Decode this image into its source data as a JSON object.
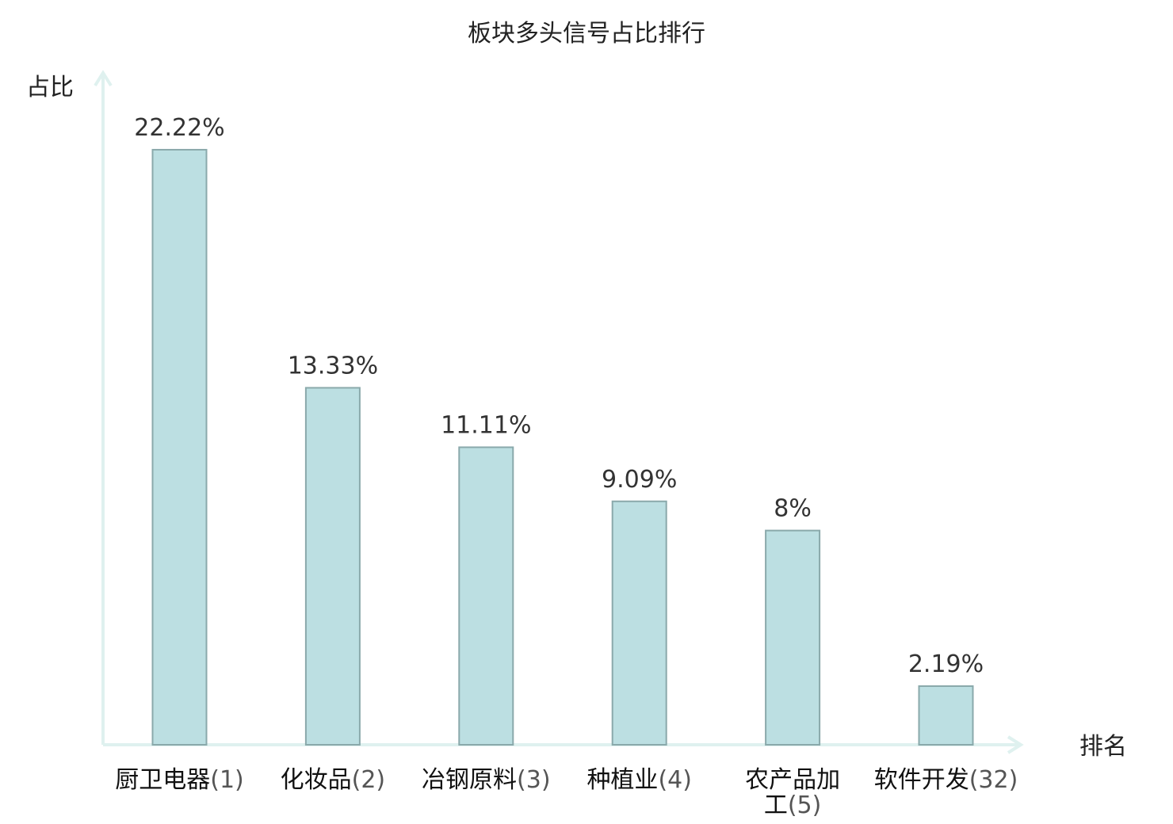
{
  "chart_data": {
    "type": "bar",
    "title": "板块多头信号占比排行",
    "ylabel": "占比",
    "xlabel": "排名",
    "grid": false,
    "ylim": [
      0,
      25
    ],
    "categories": [
      {
        "name": "厨卫电器",
        "rank": "(1)",
        "highlight": false
      },
      {
        "name": "化妆品",
        "rank": "(2)",
        "highlight": false
      },
      {
        "name": "冶钢原料",
        "rank": "(3)",
        "highlight": false
      },
      {
        "name": "种植业",
        "rank": "(4)",
        "highlight": false
      },
      {
        "name": "农产品加工",
        "rank": "(5)",
        "highlight": false
      },
      {
        "name": "软件开发",
        "rank": "(32)",
        "highlight": true
      }
    ],
    "values": [
      22.22,
      13.33,
      11.11,
      9.09,
      8,
      2.19
    ],
    "value_labels": [
      "22.22%",
      "13.33%",
      "11.11%",
      "9.09%",
      "8%",
      "2.19%"
    ]
  },
  "colors": {
    "bar_fill": "#bcdfe2",
    "bar_stroke": "#8aa9ab",
    "axis": "#dff1ef",
    "highlight": "#e8201e",
    "text": "#222222"
  }
}
